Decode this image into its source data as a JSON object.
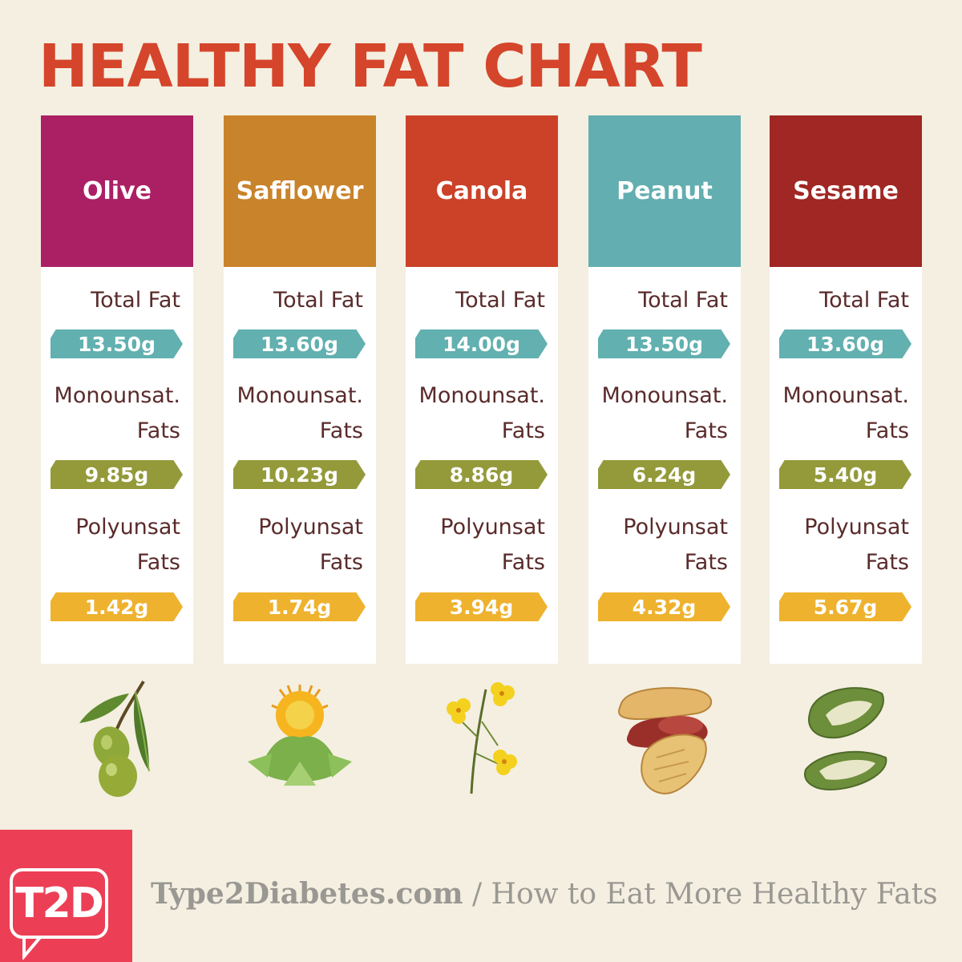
{
  "title": "HEALTHY FAT CHART",
  "labels": {
    "total_fat": "Total Fat",
    "mono_line1": "Monounsat.",
    "mono_line2": "Fats",
    "poly_line1": "Polyunsat",
    "poly_line2": "Fats"
  },
  "colors": {
    "background": "#f4efe1",
    "title": "#d5452b",
    "total_pill": "#62b0b0",
    "mono_pill": "#949a3a",
    "poly_pill": "#eeb22e",
    "label_text": "#5a2b2b"
  },
  "oils": [
    {
      "name": "Olive",
      "color": "#ab2064",
      "total": "13.50g",
      "mono": "9.85g",
      "poly": "1.42g",
      "icon": "olive-branch-icon"
    },
    {
      "name": "Safflower",
      "color": "#c9832a",
      "total": "13.60g",
      "mono": "10.23g",
      "poly": "1.74g",
      "icon": "safflower-icon"
    },
    {
      "name": "Canola",
      "color": "#cb4229",
      "total": "14.00g",
      "mono": "8.86g",
      "poly": "3.94g",
      "icon": "canola-flower-icon"
    },
    {
      "name": "Peanut",
      "color": "#62aeb0",
      "total": "13.50g",
      "mono": "6.24g",
      "poly": "4.32g",
      "icon": "peanut-icon"
    },
    {
      "name": "Sesame",
      "color": "#a02723",
      "total": "13.60g",
      "mono": "5.40g",
      "poly": "5.67g",
      "icon": "sesame-pod-icon"
    }
  ],
  "logo": {
    "text": "T2D",
    "color": "#ec3f55"
  },
  "footer": {
    "site": "Type2Diabetes.com",
    "separator": " / ",
    "article": "How to Eat More Healthy Fats"
  }
}
